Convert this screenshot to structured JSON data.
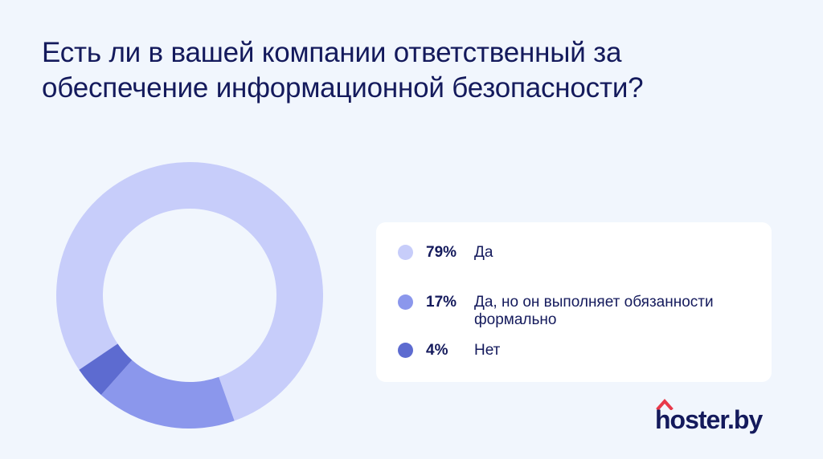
{
  "title": "Есть ли в вашей компании ответственный за обеспечение информационной безопасности?",
  "chart_data": {
    "type": "pie",
    "donut": true,
    "title": "Есть ли в вашей компании ответственный за обеспечение информационной безопасности?",
    "slices": [
      {
        "label": "Да",
        "value": 79,
        "display": "79%",
        "color": "#c7cdfa"
      },
      {
        "label": "Да, но он выполняет обязанности формально",
        "value": 17,
        "display": "17%",
        "color": "#8b97ec"
      },
      {
        "label": "Нет",
        "value": 4,
        "display": "4%",
        "color": "#5d6bd0"
      }
    ],
    "legend_position": "right"
  },
  "legend": {
    "items": [
      {
        "pct": "79%",
        "label": "Да",
        "color": "#c7cdfa"
      },
      {
        "pct": "17%",
        "label": "Да, но он выполняет обязанности формально",
        "color": "#8b97ec"
      },
      {
        "pct": "4%",
        "label": "Нет",
        "color": "#5d6bd0"
      }
    ]
  },
  "logo": {
    "text": "hoster.by",
    "roof_color": "#e8394a"
  }
}
